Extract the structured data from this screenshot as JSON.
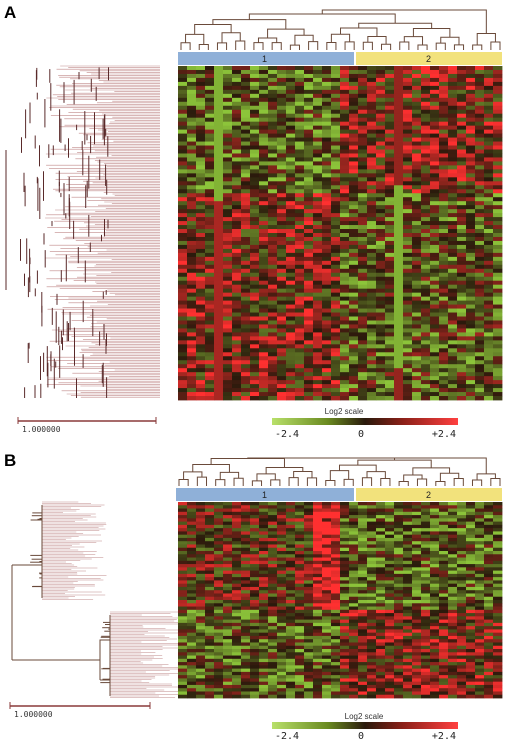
{
  "panels": [
    {
      "label": "A",
      "clusters": [
        {
          "label": "1",
          "color": "#8fb0d8"
        },
        {
          "label": "2",
          "color": "#f2e27c"
        }
      ],
      "scale_bar_label": "1.000000",
      "legend": {
        "title": "Log2 scale",
        "min_label": "-2.4",
        "mid_label": "0",
        "max_label": "+2.4"
      }
    },
    {
      "label": "B",
      "clusters": [
        {
          "label": "1",
          "color": "#8fb0d8"
        },
        {
          "label": "2",
          "color": "#f2e27c"
        }
      ],
      "scale_bar_label": "1.000000",
      "legend": {
        "title": "Log2 scale",
        "min_label": "-2.4",
        "mid_label": "0",
        "max_label": "+2.4"
      }
    }
  ],
  "colors": {
    "low": "#8cc43a",
    "mid": "#2a1a0c",
    "high": "#ff3030",
    "gene_tree": "#c08a8a",
    "sample_tree": "#6a4a3a",
    "scale_bar": "#8a3a3a"
  }
}
